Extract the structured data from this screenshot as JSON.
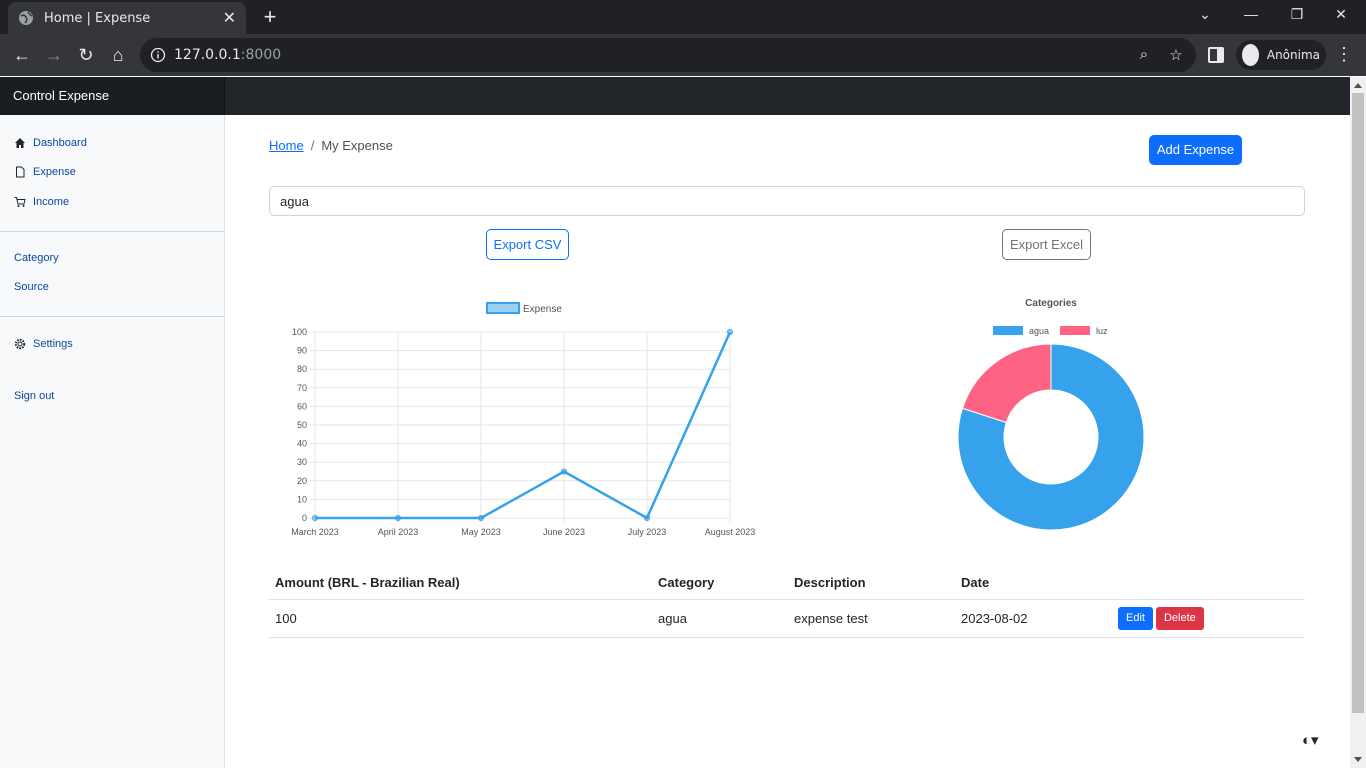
{
  "browser": {
    "tab_title": "Home | Expense",
    "close_glyph": "✕",
    "new_tab_glyph": "+",
    "url_host": "127.0.0.1",
    "url_port": ":8000",
    "profile_name": "Anônima"
  },
  "app": {
    "brand": "Control Expense"
  },
  "sidebar": {
    "items": [
      {
        "label": "Dashboard",
        "icon": "house-icon"
      },
      {
        "label": "Expense",
        "icon": "file-icon"
      },
      {
        "label": "Income",
        "icon": "cart-icon"
      },
      {
        "label": "Category"
      },
      {
        "label": "Source"
      },
      {
        "label": "Settings",
        "icon": "gear-icon"
      },
      {
        "label": "Sign out"
      }
    ]
  },
  "breadcrumb": {
    "home": "Home",
    "separator": "/",
    "current": "My Expense"
  },
  "actions": {
    "add_expense": "Add Expense",
    "export_csv": "Export CSV",
    "export_excel": "Export Excel"
  },
  "search": {
    "value": "agua"
  },
  "chart_data": [
    {
      "type": "line",
      "title": "",
      "legend": [
        "Expense"
      ],
      "legend_position": "top",
      "categories": [
        "March 2023",
        "April 2023",
        "May 2023",
        "June 2023",
        "July 2023",
        "August 2023"
      ],
      "series": [
        {
          "name": "Expense",
          "values": [
            0,
            0,
            0,
            25,
            0,
            100
          ]
        }
      ],
      "ylim": [
        0,
        100
      ],
      "yticks": [
        0,
        10,
        20,
        30,
        40,
        50,
        60,
        70,
        80,
        90,
        100
      ],
      "grid": true,
      "color": "#36a2eb"
    },
    {
      "type": "pie",
      "title": "Categories",
      "legend_position": "top",
      "doughnut": true,
      "labels": [
        "agua",
        "luz"
      ],
      "values": [
        80,
        20
      ],
      "colors": [
        "#36a2eb",
        "#ff6384"
      ]
    }
  ],
  "table": {
    "headers": [
      "Amount (BRL - Brazilian Real)",
      "Category",
      "Description",
      "Date"
    ],
    "rows": [
      {
        "amount": "100",
        "category": "agua",
        "description": "expense test",
        "date": "2023-08-02",
        "edit": "Edit",
        "delete": "Delete"
      }
    ]
  },
  "theme_toggle": "◐▾"
}
